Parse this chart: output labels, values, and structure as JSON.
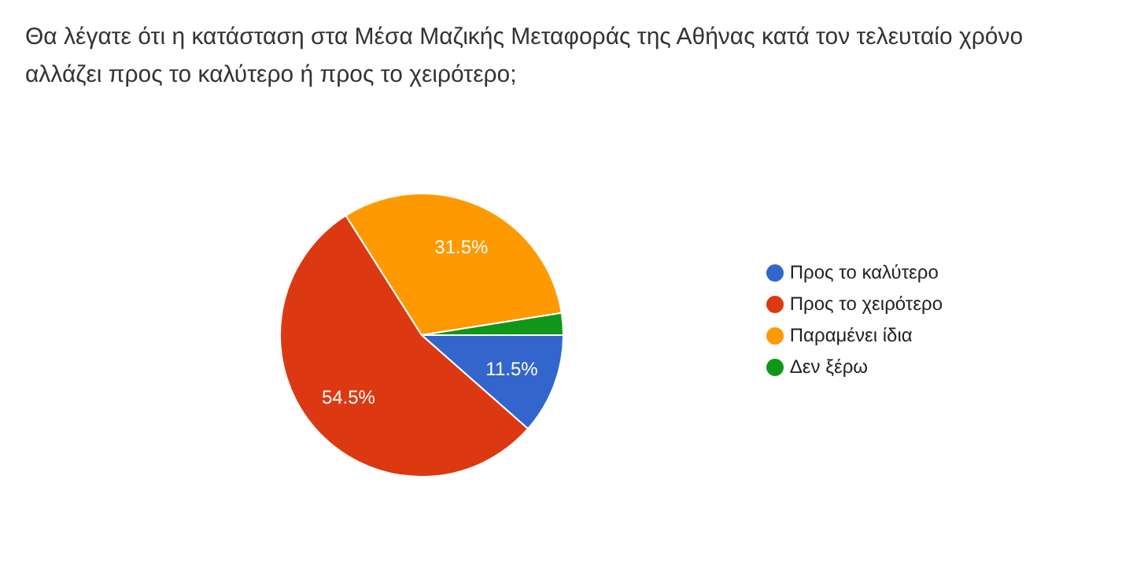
{
  "chart_data": {
    "type": "pie",
    "title": "Θα λέγατε ότι η κατάσταση στα Μέσα Μαζικής Μεταφοράς της Αθήνας κατά τον τελευταίο χρόνο αλλάζει προς το καλύτερο ή προς το χειρότερο;",
    "categories": [
      "Προς το καλύτερο",
      "Προς το χειρότερο",
      "Παραμένει ίδια",
      "Δεν ξέρω"
    ],
    "values": [
      11.5,
      54.5,
      31.5,
      2.5
    ],
    "colors": [
      "#3366cc",
      "#dc3912",
      "#ff9900",
      "#109618"
    ],
    "value_labels": [
      "11.5%",
      "54.5%",
      "31.5%",
      null
    ],
    "legend": "right"
  }
}
